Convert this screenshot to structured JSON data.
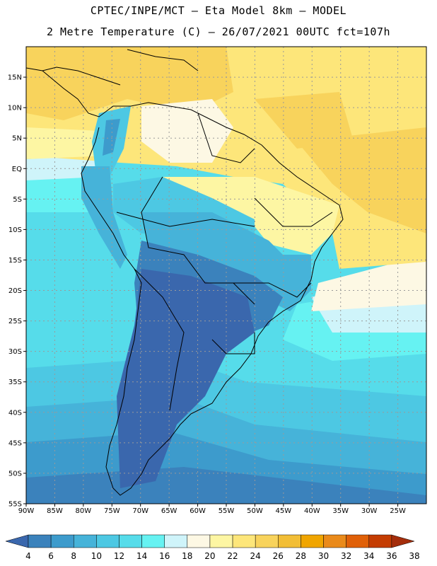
{
  "header": {
    "line1": "CPTEC/INPE/MCT –  Eta Model 8km – MODEL",
    "line2": "2 Metre Temperature (C) – 26/07/2021 00UTC fct=107h"
  },
  "map": {
    "lon_range": [
      -90,
      -20
    ],
    "lat_range": [
      -55,
      20
    ],
    "lon_ticks": [
      {
        "value": -90,
        "label": "90W"
      },
      {
        "value": -85,
        "label": "85W"
      },
      {
        "value": -80,
        "label": "80W"
      },
      {
        "value": -75,
        "label": "75W"
      },
      {
        "value": -70,
        "label": "70W"
      },
      {
        "value": -65,
        "label": "65W"
      },
      {
        "value": -60,
        "label": "60W"
      },
      {
        "value": -55,
        "label": "55W"
      },
      {
        "value": -50,
        "label": "50W"
      },
      {
        "value": -45,
        "label": "45W"
      },
      {
        "value": -40,
        "label": "40W"
      },
      {
        "value": -35,
        "label": "35W"
      },
      {
        "value": -30,
        "label": "30W"
      },
      {
        "value": -25,
        "label": "25W"
      }
    ],
    "lat_ticks": [
      {
        "value": 15,
        "label": "15N"
      },
      {
        "value": 10,
        "label": "10N"
      },
      {
        "value": 5,
        "label": "5N"
      },
      {
        "value": 0,
        "label": "EQ"
      },
      {
        "value": -5,
        "label": "5S"
      },
      {
        "value": -10,
        "label": "10S"
      },
      {
        "value": -15,
        "label": "15S"
      },
      {
        "value": -20,
        "label": "20S"
      },
      {
        "value": -25,
        "label": "25S"
      },
      {
        "value": -30,
        "label": "30S"
      },
      {
        "value": -35,
        "label": "35S"
      },
      {
        "value": -40,
        "label": "40S"
      },
      {
        "value": -45,
        "label": "45S"
      },
      {
        "value": -50,
        "label": "50S"
      },
      {
        "value": -55,
        "label": "55S"
      }
    ],
    "gridlines": true,
    "field": "2 m temperature"
  },
  "colorbar": {
    "labels": [
      "4",
      "6",
      "8",
      "10",
      "12",
      "14",
      "16",
      "18",
      "20",
      "22",
      "24",
      "26",
      "28",
      "30",
      "32",
      "34",
      "36",
      "38"
    ],
    "colors": [
      "#3a67ad",
      "#3b82bc",
      "#3d9bcc",
      "#46b3d9",
      "#4dc8e3",
      "#56dcea",
      "#66f2f2",
      "#cff4fa",
      "#fdf8e4",
      "#fdf6a3",
      "#fde67a",
      "#f8d35c",
      "#f2be36",
      "#f0a500",
      "#ea8a1a",
      "#e06008",
      "#c43c02",
      "#a42d0b"
    ]
  }
}
